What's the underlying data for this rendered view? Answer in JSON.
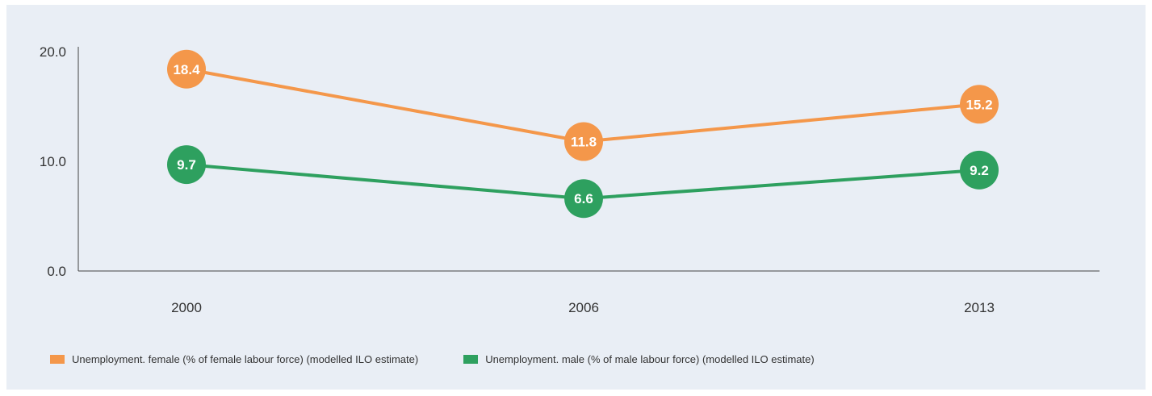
{
  "chart_data": {
    "type": "line",
    "title": "",
    "xlabel": "",
    "ylabel": "",
    "categories": [
      "2000",
      "2006",
      "2013"
    ],
    "ylim": [
      0,
      20
    ],
    "yticks": [
      "0.0",
      "10.0",
      "20.0"
    ],
    "grid": false,
    "legend_position": "bottom-left",
    "series": [
      {
        "name": "Unemployment. female (% of female labour force) (modelled ILO estimate)",
        "values": [
          18.4,
          11.8,
          15.2
        ],
        "labels": [
          "18.4",
          "11.8",
          "15.2"
        ],
        "color": "#f4974a"
      },
      {
        "name": "Unemployment. male (% of male labour force) (modelled ILO estimate)",
        "values": [
          9.7,
          6.6,
          9.2
        ],
        "labels": [
          "9.7",
          "6.6",
          "9.2"
        ],
        "color": "#2ea05f"
      }
    ]
  }
}
